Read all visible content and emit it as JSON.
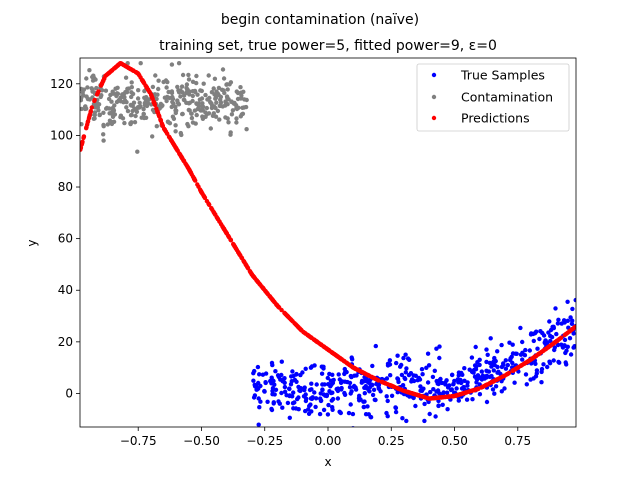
{
  "chart_data": {
    "type": "scatter",
    "suptitle": "begin contamination (naïve)",
    "title": "training set, true power=5, fitted power=9, ε=0",
    "xlabel": "x",
    "ylabel": "y",
    "xlim": [
      -0.98,
      0.98
    ],
    "ylim": [
      -13,
      130
    ],
    "x_ticks": [
      -0.75,
      -0.5,
      -0.25,
      0.0,
      0.25,
      0.5,
      0.75
    ],
    "x_tick_labels": [
      "−0.75",
      "−0.50",
      "−0.25",
      "0.00",
      "0.25",
      "0.50",
      "0.75"
    ],
    "y_ticks": [
      0,
      20,
      40,
      60,
      80,
      100,
      120
    ],
    "y_tick_labels": [
      "0",
      "20",
      "40",
      "60",
      "80",
      "100",
      "120"
    ],
    "grid": false,
    "legend_position": "top-right",
    "series": [
      {
        "name": "True Samples",
        "color": "#0000ff",
        "marker": "circle",
        "x_range": [
          -0.3,
          0.98
        ],
        "trend_curve": [
          [
            -0.3,
            3
          ],
          [
            -0.1,
            1
          ],
          [
            0.1,
            3
          ],
          [
            0.3,
            4
          ],
          [
            0.45,
            2
          ],
          [
            0.6,
            6
          ],
          [
            0.75,
            12
          ],
          [
            0.9,
            20
          ],
          [
            0.98,
            25
          ]
        ],
        "spread": 14
      },
      {
        "name": "Contamination",
        "color": "#808080",
        "marker": "circle",
        "x_range": [
          -0.98,
          -0.32
        ],
        "y_center": 113,
        "spread": 16,
        "y_range": [
          90,
          128
        ]
      },
      {
        "name": "Predictions",
        "color": "#ff0000",
        "marker": "circle",
        "x_range": [
          -0.98,
          0.98
        ],
        "curve": [
          [
            -0.98,
            94
          ],
          [
            -0.93,
            112
          ],
          [
            -0.88,
            123
          ],
          [
            -0.82,
            128
          ],
          [
            -0.75,
            124
          ],
          [
            -0.7,
            116
          ],
          [
            -0.65,
            103
          ],
          [
            -0.55,
            87
          ],
          [
            -0.5,
            78
          ],
          [
            -0.4,
            62
          ],
          [
            -0.3,
            46
          ],
          [
            -0.2,
            34
          ],
          [
            -0.1,
            24
          ],
          [
            0.0,
            17
          ],
          [
            0.1,
            10
          ],
          [
            0.2,
            5
          ],
          [
            0.3,
            1
          ],
          [
            0.4,
            -2
          ],
          [
            0.5,
            -1
          ],
          [
            0.6,
            2
          ],
          [
            0.7,
            7
          ],
          [
            0.8,
            13
          ],
          [
            0.9,
            20
          ],
          [
            0.98,
            26
          ]
        ]
      }
    ]
  }
}
